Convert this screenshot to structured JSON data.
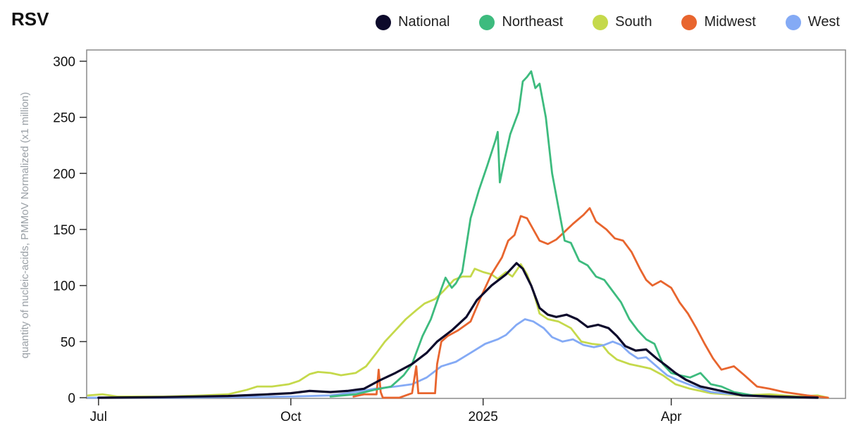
{
  "chart_data": {
    "type": "line",
    "title": "RSV",
    "xlabel": "",
    "ylabel": "quantity of nucleic-acids, PMMoV Normalized (x1 million)",
    "ylim": [
      0,
      300
    ],
    "yticks": [
      0,
      50,
      100,
      150,
      200,
      250,
      300
    ],
    "xrange": [
      "2024-06-26",
      "2025-06-20"
    ],
    "xticks": [
      {
        "label": "Jul",
        "date": "2024-07-01"
      },
      {
        "label": "Oct",
        "date": "2024-10-01"
      },
      {
        "label": "2025",
        "date": "2025-01-01"
      },
      {
        "label": "Apr",
        "date": "2025-04-01"
      }
    ],
    "grid": false,
    "legend_position": "top-right",
    "series": [
      {
        "name": "National",
        "color": "#0d0a2b",
        "points": [
          [
            "2024-07-01",
            0
          ],
          [
            "2024-08-01",
            0.5
          ],
          [
            "2024-09-01",
            1.5
          ],
          [
            "2024-09-20",
            3
          ],
          [
            "2024-10-01",
            4
          ],
          [
            "2024-10-10",
            6
          ],
          [
            "2024-10-20",
            5
          ],
          [
            "2024-10-28",
            6
          ],
          [
            "2024-11-05",
            8
          ],
          [
            "2024-11-12",
            15
          ],
          [
            "2024-11-20",
            22
          ],
          [
            "2024-11-28",
            30
          ],
          [
            "2024-12-05",
            40
          ],
          [
            "2024-12-10",
            50
          ],
          [
            "2024-12-17",
            60
          ],
          [
            "2024-12-24",
            72
          ],
          [
            "2024-12-29",
            87
          ],
          [
            "2025-01-05",
            100
          ],
          [
            "2025-01-12",
            110
          ],
          [
            "2025-01-17",
            120
          ],
          [
            "2025-01-20",
            115
          ],
          [
            "2025-01-24",
            100
          ],
          [
            "2025-01-28",
            80
          ],
          [
            "2025-02-01",
            74
          ],
          [
            "2025-02-05",
            72
          ],
          [
            "2025-02-10",
            74
          ],
          [
            "2025-02-15",
            70
          ],
          [
            "2025-02-20",
            63
          ],
          [
            "2025-02-25",
            65
          ],
          [
            "2025-03-02",
            62
          ],
          [
            "2025-03-06",
            55
          ],
          [
            "2025-03-10",
            46
          ],
          [
            "2025-03-15",
            42
          ],
          [
            "2025-03-20",
            43
          ],
          [
            "2025-03-25",
            35
          ],
          [
            "2025-03-30",
            28
          ],
          [
            "2025-04-03",
            22
          ],
          [
            "2025-04-08",
            16
          ],
          [
            "2025-04-15",
            10
          ],
          [
            "2025-04-25",
            6
          ],
          [
            "2025-05-05",
            2
          ],
          [
            "2025-05-20",
            1
          ],
          [
            "2025-06-10",
            0
          ]
        ]
      },
      {
        "name": "Northeast",
        "color": "#3dbb7e",
        "points": [
          [
            "2024-10-20",
            1
          ],
          [
            "2024-11-01",
            3
          ],
          [
            "2024-11-10",
            7
          ],
          [
            "2024-11-18",
            10
          ],
          [
            "2024-11-24",
            20
          ],
          [
            "2024-11-28",
            30
          ],
          [
            "2024-12-03",
            55
          ],
          [
            "2024-12-07",
            70
          ],
          [
            "2024-12-12",
            97
          ],
          [
            "2024-12-14",
            107
          ],
          [
            "2024-12-17",
            98
          ],
          [
            "2024-12-19",
            102
          ],
          [
            "2024-12-22",
            112
          ],
          [
            "2024-12-26",
            160
          ],
          [
            "2024-12-30",
            185
          ],
          [
            "2025-01-03",
            207
          ],
          [
            "2025-01-07",
            230
          ],
          [
            "2025-01-08",
            237
          ],
          [
            "2025-01-09",
            192
          ],
          [
            "2025-01-11",
            210
          ],
          [
            "2025-01-14",
            235
          ],
          [
            "2025-01-18",
            255
          ],
          [
            "2025-01-20",
            282
          ],
          [
            "2025-01-22",
            286
          ],
          [
            "2025-01-24",
            291
          ],
          [
            "2025-01-26",
            276
          ],
          [
            "2025-01-28",
            280
          ],
          [
            "2025-01-31",
            250
          ],
          [
            "2025-02-03",
            200
          ],
          [
            "2025-02-06",
            170
          ],
          [
            "2025-02-09",
            140
          ],
          [
            "2025-02-12",
            138
          ],
          [
            "2025-02-16",
            122
          ],
          [
            "2025-02-20",
            118
          ],
          [
            "2025-02-24",
            108
          ],
          [
            "2025-02-28",
            105
          ],
          [
            "2025-03-04",
            95
          ],
          [
            "2025-03-08",
            85
          ],
          [
            "2025-03-12",
            70
          ],
          [
            "2025-03-16",
            60
          ],
          [
            "2025-03-20",
            52
          ],
          [
            "2025-03-24",
            48
          ],
          [
            "2025-03-28",
            30
          ],
          [
            "2025-04-01",
            22
          ],
          [
            "2025-04-05",
            20
          ],
          [
            "2025-04-10",
            18
          ],
          [
            "2025-04-15",
            22
          ],
          [
            "2025-04-20",
            12
          ],
          [
            "2025-04-25",
            10
          ],
          [
            "2025-05-01",
            5
          ],
          [
            "2025-05-10",
            2
          ],
          [
            "2025-05-20",
            1
          ],
          [
            "2025-06-01",
            0
          ]
        ]
      },
      {
        "name": "South",
        "color": "#c5d94b",
        "points": [
          [
            "2024-06-26",
            2
          ],
          [
            "2024-07-03",
            3
          ],
          [
            "2024-07-10",
            1
          ],
          [
            "2024-08-01",
            1
          ],
          [
            "2024-08-20",
            2
          ],
          [
            "2024-09-01",
            3
          ],
          [
            "2024-09-10",
            7
          ],
          [
            "2024-09-15",
            10
          ],
          [
            "2024-09-22",
            10
          ],
          [
            "2024-09-30",
            12
          ],
          [
            "2024-10-05",
            15
          ],
          [
            "2024-10-10",
            21
          ],
          [
            "2024-10-14",
            23
          ],
          [
            "2024-10-20",
            22
          ],
          [
            "2024-10-25",
            20
          ],
          [
            "2024-11-01",
            22
          ],
          [
            "2024-11-06",
            28
          ],
          [
            "2024-11-11",
            40
          ],
          [
            "2024-11-15",
            50
          ],
          [
            "2024-11-20",
            60
          ],
          [
            "2024-11-25",
            70
          ],
          [
            "2024-11-30",
            78
          ],
          [
            "2024-12-04",
            84
          ],
          [
            "2024-12-09",
            88
          ],
          [
            "2024-12-13",
            95
          ],
          [
            "2024-12-18",
            105
          ],
          [
            "2024-12-22",
            108
          ],
          [
            "2024-12-26",
            108
          ],
          [
            "2024-12-28",
            115
          ],
          [
            "2025-01-01",
            112
          ],
          [
            "2025-01-05",
            110
          ],
          [
            "2025-01-08",
            106
          ],
          [
            "2025-01-12",
            112
          ],
          [
            "2025-01-15",
            108
          ],
          [
            "2025-01-19",
            119
          ],
          [
            "2025-01-22",
            110
          ],
          [
            "2025-01-25",
            95
          ],
          [
            "2025-01-28",
            75
          ],
          [
            "2025-02-01",
            70
          ],
          [
            "2025-02-06",
            68
          ],
          [
            "2025-02-12",
            62
          ],
          [
            "2025-02-17",
            50
          ],
          [
            "2025-02-22",
            48
          ],
          [
            "2025-02-27",
            47
          ],
          [
            "2025-03-02",
            40
          ],
          [
            "2025-03-06",
            34
          ],
          [
            "2025-03-12",
            30
          ],
          [
            "2025-03-17",
            28
          ],
          [
            "2025-03-22",
            26
          ],
          [
            "2025-03-28",
            20
          ],
          [
            "2025-04-03",
            12
          ],
          [
            "2025-04-10",
            8
          ],
          [
            "2025-04-20",
            4
          ],
          [
            "2025-05-05",
            2
          ],
          [
            "2025-05-18",
            3
          ],
          [
            "2025-06-01",
            1
          ],
          [
            "2025-06-10",
            2
          ],
          [
            "2025-06-15",
            0
          ]
        ]
      },
      {
        "name": "Midwest",
        "color": "#e8652e",
        "points": [
          [
            "2024-10-31",
            1
          ],
          [
            "2024-11-05",
            3
          ],
          [
            "2024-11-11",
            3
          ],
          [
            "2024-11-12",
            25
          ],
          [
            "2024-11-13",
            5
          ],
          [
            "2024-11-14",
            0
          ],
          [
            "2024-11-22",
            0
          ],
          [
            "2024-11-28",
            4
          ],
          [
            "2024-11-30",
            28
          ],
          [
            "2024-12-01",
            4
          ],
          [
            "2024-12-09",
            4
          ],
          [
            "2024-12-10",
            30
          ],
          [
            "2024-12-12",
            50
          ],
          [
            "2024-12-15",
            55
          ],
          [
            "2024-12-20",
            60
          ],
          [
            "2024-12-26",
            68
          ],
          [
            "2024-12-31",
            90
          ],
          [
            "2025-01-05",
            110
          ],
          [
            "2025-01-10",
            125
          ],
          [
            "2025-01-13",
            140
          ],
          [
            "2025-01-16",
            145
          ],
          [
            "2025-01-19",
            162
          ],
          [
            "2025-01-22",
            160
          ],
          [
            "2025-01-25",
            150
          ],
          [
            "2025-01-28",
            140
          ],
          [
            "2025-02-01",
            137
          ],
          [
            "2025-02-05",
            141
          ],
          [
            "2025-02-09",
            148
          ],
          [
            "2025-02-13",
            155
          ],
          [
            "2025-02-18",
            163
          ],
          [
            "2025-02-21",
            169
          ],
          [
            "2025-02-24",
            157
          ],
          [
            "2025-03-01",
            150
          ],
          [
            "2025-03-05",
            142
          ],
          [
            "2025-03-09",
            140
          ],
          [
            "2025-03-13",
            130
          ],
          [
            "2025-03-17",
            115
          ],
          [
            "2025-03-20",
            105
          ],
          [
            "2025-03-23",
            100
          ],
          [
            "2025-03-27",
            104
          ],
          [
            "2025-04-01",
            98
          ],
          [
            "2025-04-05",
            85
          ],
          [
            "2025-04-09",
            75
          ],
          [
            "2025-04-13",
            62
          ],
          [
            "2025-04-17",
            48
          ],
          [
            "2025-04-21",
            35
          ],
          [
            "2025-04-25",
            25
          ],
          [
            "2025-05-01",
            28
          ],
          [
            "2025-05-06",
            20
          ],
          [
            "2025-05-12",
            10
          ],
          [
            "2025-05-18",
            8
          ],
          [
            "2025-05-25",
            5
          ],
          [
            "2025-06-05",
            2
          ],
          [
            "2025-06-15",
            0
          ]
        ]
      },
      {
        "name": "West",
        "color": "#84aaf5",
        "points": [
          [
            "2024-06-26",
            0
          ],
          [
            "2024-08-01",
            0
          ],
          [
            "2024-09-01",
            0.5
          ],
          [
            "2024-10-01",
            1
          ],
          [
            "2024-10-20",
            2
          ],
          [
            "2024-11-01",
            5
          ],
          [
            "2024-11-10",
            8
          ],
          [
            "2024-11-20",
            10
          ],
          [
            "2024-11-28",
            12
          ],
          [
            "2024-12-05",
            18
          ],
          [
            "2024-12-12",
            28
          ],
          [
            "2024-12-19",
            32
          ],
          [
            "2024-12-26",
            40
          ],
          [
            "2025-01-02",
            48
          ],
          [
            "2025-01-08",
            52
          ],
          [
            "2025-01-12",
            56
          ],
          [
            "2025-01-17",
            65
          ],
          [
            "2025-01-21",
            70
          ],
          [
            "2025-01-25",
            68
          ],
          [
            "2025-01-30",
            62
          ],
          [
            "2025-02-03",
            54
          ],
          [
            "2025-02-08",
            50
          ],
          [
            "2025-02-13",
            52
          ],
          [
            "2025-02-18",
            47
          ],
          [
            "2025-02-23",
            45
          ],
          [
            "2025-02-28",
            47
          ],
          [
            "2025-03-04",
            50
          ],
          [
            "2025-03-08",
            47
          ],
          [
            "2025-03-12",
            40
          ],
          [
            "2025-03-16",
            35
          ],
          [
            "2025-03-20",
            36
          ],
          [
            "2025-03-25",
            28
          ],
          [
            "2025-03-30",
            20
          ],
          [
            "2025-04-05",
            15
          ],
          [
            "2025-04-12",
            10
          ],
          [
            "2025-04-20",
            5
          ],
          [
            "2025-05-01",
            3
          ],
          [
            "2025-05-15",
            1
          ],
          [
            "2025-06-01",
            0
          ]
        ]
      }
    ]
  }
}
